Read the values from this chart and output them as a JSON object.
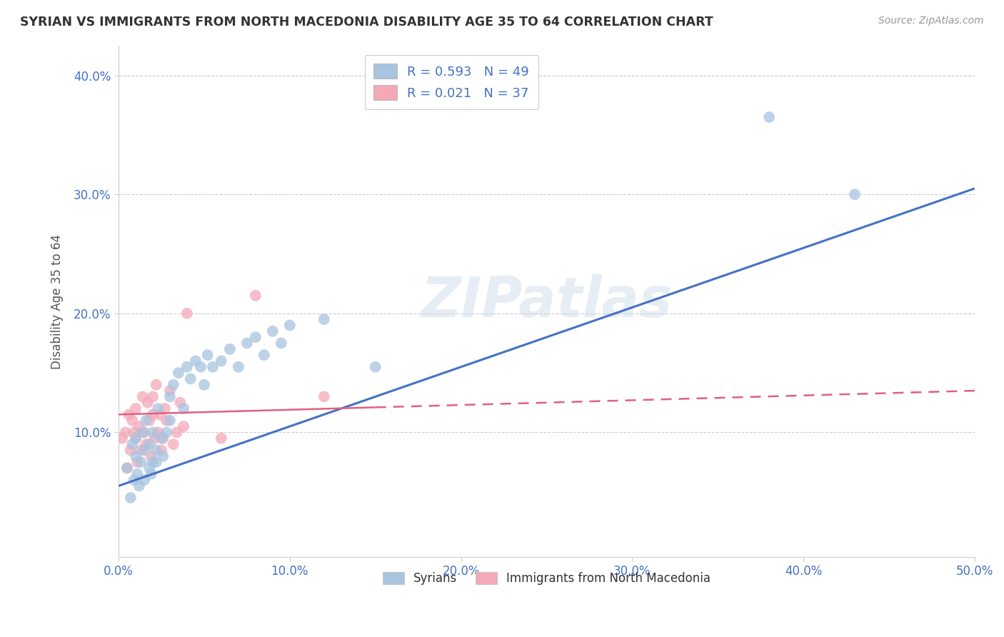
{
  "title": "SYRIAN VS IMMIGRANTS FROM NORTH MACEDONIA DISABILITY AGE 35 TO 64 CORRELATION CHART",
  "source": "Source: ZipAtlas.com",
  "xlabel": "",
  "ylabel": "Disability Age 35 to 64",
  "xlim": [
    0.0,
    0.5
  ],
  "ylim": [
    -0.005,
    0.425
  ],
  "xticks": [
    0.0,
    0.1,
    0.2,
    0.3,
    0.4,
    0.5
  ],
  "xticklabels": [
    "0.0%",
    "10.0%",
    "20.0%",
    "30.0%",
    "40.0%",
    "50.0%"
  ],
  "yticks": [
    0.1,
    0.2,
    0.3,
    0.4
  ],
  "yticklabels": [
    "10.0%",
    "20.0%",
    "30.0%",
    "40.0%"
  ],
  "legend_labels": [
    "Syrians",
    "Immigrants from North Macedonia"
  ],
  "r_syrian": 0.593,
  "n_syrian": 49,
  "r_nmakedonia": 0.021,
  "n_nmakedonia": 37,
  "syrian_color": "#a8c4e0",
  "nmacedonia_color": "#f4a8b8",
  "syrian_line_color": "#4472c4",
  "nmacedonia_line_color": "#e06080",
  "watermark": "ZIPatlas",
  "background_color": "#ffffff",
  "grid_color": "#cccccc",
  "title_color": "#333333",
  "tick_color": "#4472c4",
  "syrian_scatter": {
    "x": [
      0.005,
      0.007,
      0.008,
      0.009,
      0.01,
      0.01,
      0.011,
      0.012,
      0.013,
      0.014,
      0.015,
      0.015,
      0.016,
      0.018,
      0.018,
      0.019,
      0.02,
      0.02,
      0.022,
      0.022,
      0.023,
      0.025,
      0.026,
      0.028,
      0.03,
      0.03,
      0.032,
      0.035,
      0.038,
      0.04,
      0.042,
      0.045,
      0.048,
      0.05,
      0.052,
      0.055,
      0.06,
      0.065,
      0.07,
      0.075,
      0.08,
      0.085,
      0.09,
      0.095,
      0.1,
      0.12,
      0.15,
      0.38,
      0.43
    ],
    "y": [
      0.07,
      0.045,
      0.09,
      0.06,
      0.08,
      0.095,
      0.065,
      0.055,
      0.075,
      0.1,
      0.085,
      0.06,
      0.11,
      0.07,
      0.09,
      0.065,
      0.075,
      0.1,
      0.085,
      0.075,
      0.12,
      0.095,
      0.08,
      0.1,
      0.11,
      0.13,
      0.14,
      0.15,
      0.12,
      0.155,
      0.145,
      0.16,
      0.155,
      0.14,
      0.165,
      0.155,
      0.16,
      0.17,
      0.155,
      0.175,
      0.18,
      0.165,
      0.185,
      0.175,
      0.19,
      0.195,
      0.155,
      0.365,
      0.3
    ]
  },
  "nmacedonia_scatter": {
    "x": [
      0.002,
      0.004,
      0.005,
      0.006,
      0.007,
      0.008,
      0.009,
      0.01,
      0.01,
      0.011,
      0.012,
      0.013,
      0.014,
      0.015,
      0.016,
      0.017,
      0.018,
      0.019,
      0.02,
      0.02,
      0.021,
      0.022,
      0.023,
      0.024,
      0.025,
      0.026,
      0.027,
      0.028,
      0.03,
      0.032,
      0.034,
      0.036,
      0.038,
      0.04,
      0.06,
      0.08,
      0.12
    ],
    "y": [
      0.095,
      0.1,
      0.07,
      0.115,
      0.085,
      0.11,
      0.1,
      0.12,
      0.095,
      0.075,
      0.105,
      0.085,
      0.13,
      0.1,
      0.09,
      0.125,
      0.11,
      0.08,
      0.115,
      0.13,
      0.095,
      0.14,
      0.1,
      0.115,
      0.085,
      0.095,
      0.12,
      0.11,
      0.135,
      0.09,
      0.1,
      0.125,
      0.105,
      0.2,
      0.095,
      0.215,
      0.13
    ]
  },
  "syrian_line": {
    "x0": 0.0,
    "x1": 0.5,
    "y0": 0.055,
    "y1": 0.305
  },
  "nmacedonia_line": {
    "x0": 0.0,
    "x1": 0.5,
    "y0": 0.115,
    "y1": 0.135
  }
}
